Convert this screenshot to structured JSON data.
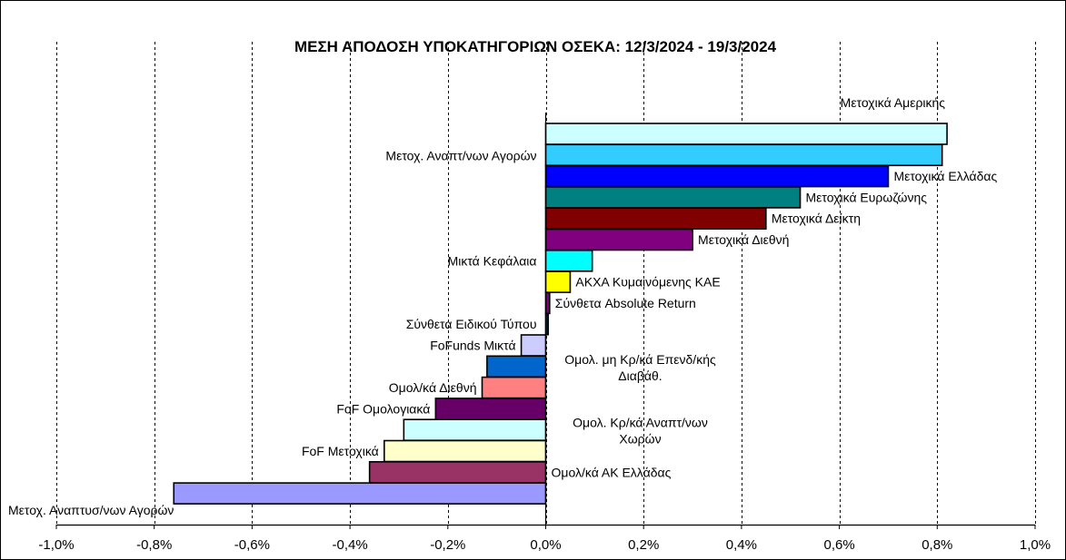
{
  "chart_data": {
    "type": "bar",
    "orientation": "horizontal",
    "title": "ΜΕΣΗ ΑΠΟΔΟΣΗ ΥΠΟΚΑΤΗΓΟΡΙΩΝ ΟΣΕΚΑ: 12/3/2024 - 19/3/2024",
    "xlabel": "",
    "ylabel": "",
    "xlim": [
      -1.0,
      1.0
    ],
    "grid": "vertical-dashed",
    "x_ticks": [
      "-1,0%",
      "-0,8%",
      "-0,6%",
      "-0,4%",
      "-0,2%",
      "0,0%",
      "0,2%",
      "0,4%",
      "0,6%",
      "0,8%",
      "1,0%"
    ],
    "categories": [
      [
        "Μετοχικά Αμερικής"
      ],
      [
        "Μετοχ. Αναπτ/νων Αγορών"
      ],
      [
        "Μετοχικά Ελλάδας"
      ],
      [
        "Μετοχικά Ευρωζώνης"
      ],
      [
        "Μετοχικά Δείκτη"
      ],
      [
        "Μετοχικά Διεθνή"
      ],
      [
        "Μικτά Κεφάλαια"
      ],
      [
        "ΑΚΧΑ Κυμαινόμενης  ΚΑΕ"
      ],
      [
        "Σύνθετα Absolute Return"
      ],
      [
        "Σύνθετα Ειδικού Τύπου"
      ],
      [
        "FoFunds Μικτά"
      ],
      [
        "Ομολ. μη Κρ/κά Επενδ/κής",
        "Διαβάθ."
      ],
      [
        "Ομολ/κά Διεθνή"
      ],
      [
        "FoF Ομολογιακά"
      ],
      [
        "Ομολ. Κρ/κά Αναπτ/νων",
        "Χωρών"
      ],
      [
        "FoF Μετοχικά"
      ],
      [
        "Ομολ/κά ΑΚ Ελλάδας"
      ],
      [
        "Μετοχ. Αναπτυσ/νων Αγορών"
      ]
    ],
    "values": [
      0.82,
      0.81,
      0.7,
      0.52,
      0.45,
      0.3,
      0.095,
      0.05,
      0.008,
      0.005,
      -0.05,
      -0.12,
      -0.13,
      -0.225,
      -0.29,
      -0.33,
      -0.36,
      -0.76
    ],
    "colors": [
      "#ccffff",
      "#33ccff",
      "#0000ff",
      "#008080",
      "#800000",
      "#800080",
      "#00ffff",
      "#ffff00",
      "#800080",
      "#003366",
      "#ccccff",
      "#0066cc",
      "#ff8080",
      "#660066",
      "#ccffff",
      "#ffffcc",
      "#993366",
      "#9999ff"
    ]
  }
}
